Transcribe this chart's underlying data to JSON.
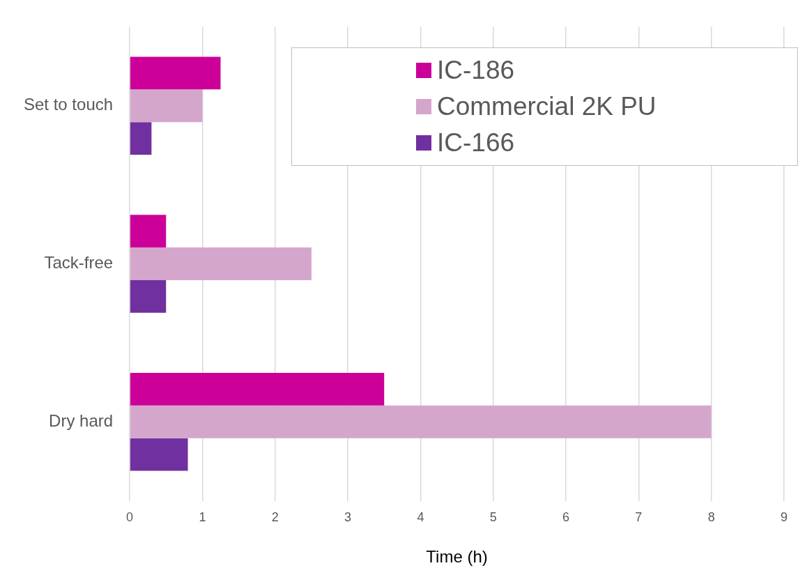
{
  "chart_data": {
    "type": "bar",
    "orientation": "horizontal",
    "xlabel": "Time (h)",
    "categories": [
      "Set to touch",
      "Tack-free",
      "Dry hard"
    ],
    "series": [
      {
        "name": "IC-186",
        "color": "#cc0099",
        "values": [
          1.25,
          0.5,
          3.5
        ]
      },
      {
        "name": "Commercial 2K PU",
        "color": "#d5a6cc",
        "values": [
          1.0,
          2.5,
          8
        ]
      },
      {
        "name": "IC-166",
        "color": "#7030a0",
        "values": [
          0.3,
          0.5,
          0.8
        ]
      }
    ],
    "xlim": [
      0,
      9
    ],
    "xticks": [
      0,
      1,
      2,
      3,
      4,
      5,
      6,
      7,
      8,
      9
    ],
    "grid": "x",
    "legend": "top right"
  }
}
